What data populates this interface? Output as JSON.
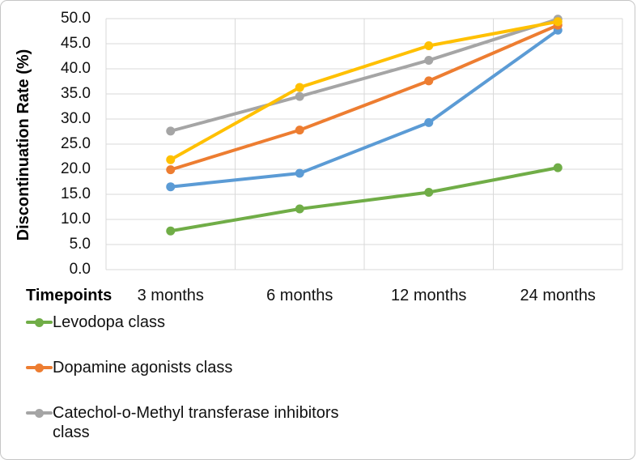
{
  "chart_data": {
    "type": "line",
    "title": "",
    "x_axis_title": "Timepoints",
    "ylabel": "Discontinuation Rate (%)",
    "categories": [
      "3 months",
      "6 months",
      "12 months",
      "24 months"
    ],
    "ylim": [
      0,
      50
    ],
    "ytick_step": 5,
    "ytick_labels": [
      "0.0",
      "5.0",
      "10.0",
      "15.0",
      "20.0",
      "25.0",
      "30.0",
      "35.0",
      "40.0",
      "45.0",
      "50.0"
    ],
    "grid": true,
    "gridline_color": "#d9d9d9",
    "legend_position": "bottom-left",
    "series": [
      {
        "name": "",
        "color": "#5B9BD5",
        "values": [
          16.5,
          19.2,
          29.3,
          47.7
        ],
        "in_legend": false
      },
      {
        "name": "Dopamine agonists class",
        "color": "#ED7D31",
        "values": [
          19.9,
          27.8,
          37.6,
          48.7
        ],
        "in_legend": true
      },
      {
        "name": "Catechol-o-Methyl transferase inhibitors class",
        "color": "#A5A5A5",
        "values": [
          27.6,
          34.5,
          41.7,
          49.9
        ],
        "in_legend": true
      },
      {
        "name": "",
        "color": "#FFC000",
        "values": [
          21.9,
          36.3,
          44.6,
          49.4
        ],
        "in_legend": false
      },
      {
        "name": "Levodopa class",
        "color": "#70AD47",
        "values": [
          7.7,
          12.1,
          15.4,
          20.3
        ],
        "in_legend": true
      }
    ],
    "legend_order": [
      "Levodopa class",
      "Dopamine agonists class",
      "Catechol-o-Methyl transferase inhibitors class"
    ]
  }
}
